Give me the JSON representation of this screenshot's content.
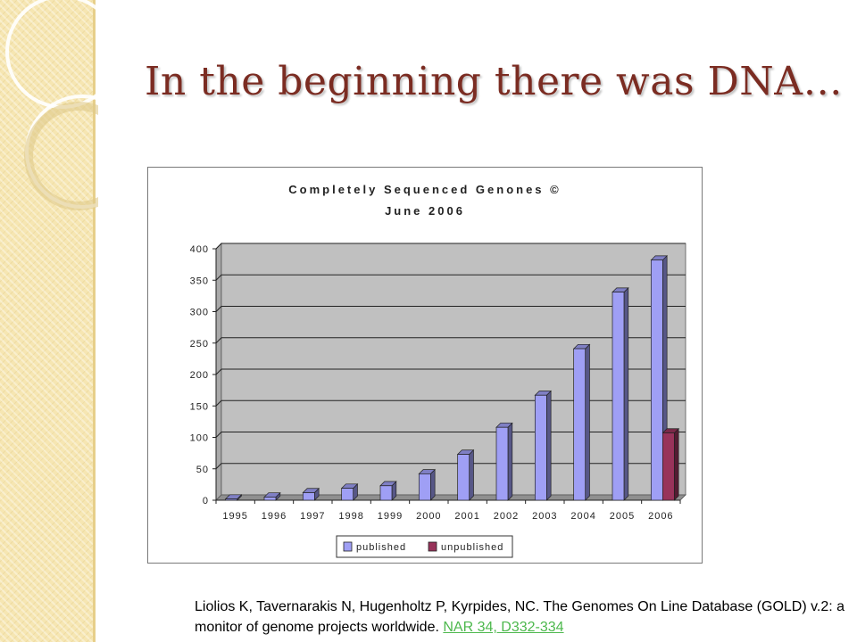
{
  "slide": {
    "title": "In the beginning there was DNA…"
  },
  "citation": {
    "text": "Liolios K, Tavernarakis N, Hugenholtz P, Kyrpides, NC. The Genomes On Line Database (GOLD) v.2: a monitor of genome projects worldwide.",
    "link_text": "NAR 34, D332-334"
  },
  "colors": {
    "title": "#7b2c22",
    "published": "#9f9ff5",
    "unpublished": "#98335a",
    "plot_bg": "#c0c0c0",
    "link": "#4db84d"
  },
  "chart_data": {
    "type": "bar",
    "title": "Completely Sequenced Genones ©",
    "subtitle": "June 2006",
    "categories": [
      "1995",
      "1996",
      "1997",
      "1998",
      "1999",
      "2000",
      "2001",
      "2002",
      "2003",
      "2004",
      "2005",
      "2006"
    ],
    "series": [
      {
        "name": "published",
        "values": [
          2,
          5,
          12,
          19,
          23,
          42,
          73,
          116,
          167,
          241,
          331,
          382
        ]
      },
      {
        "name": "unpublished",
        "values": [
          0,
          0,
          0,
          0,
          0,
          0,
          0,
          0,
          0,
          0,
          0,
          107
        ]
      }
    ],
    "ylim": [
      0,
      400
    ],
    "yticks": [
      "0",
      "50",
      "100",
      "150",
      "200",
      "250",
      "300",
      "350",
      "400"
    ],
    "grid": true,
    "legend": "bottom",
    "style": "3d"
  }
}
